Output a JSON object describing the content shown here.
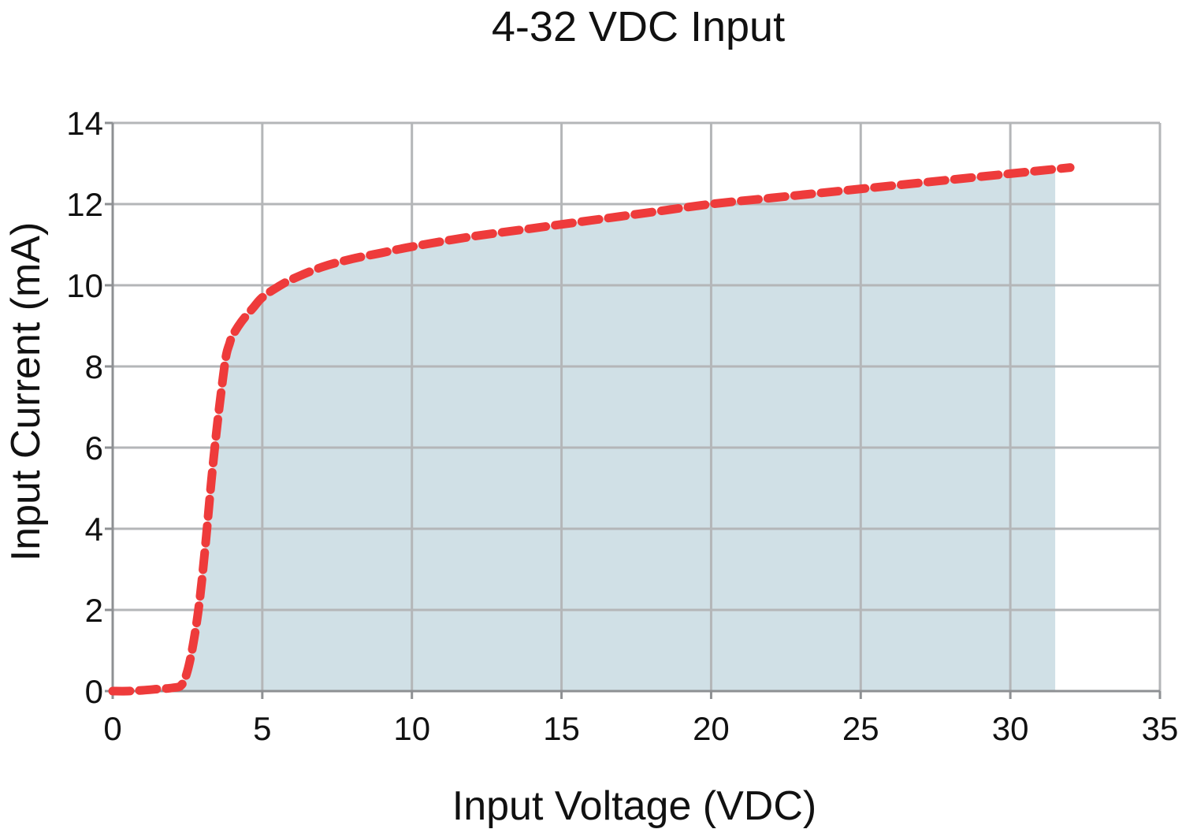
{
  "chart_data": {
    "type": "area",
    "title": "4-32 VDC Input",
    "xlabel": "Input Voltage (VDC)",
    "ylabel": "Input Current (mA)",
    "xlim": [
      0,
      35
    ],
    "ylim": [
      0,
      14
    ],
    "xticks": [
      "0",
      "5",
      "10",
      "15",
      "20",
      "25",
      "30",
      "35"
    ],
    "yticks": [
      "0",
      "2",
      "4",
      "6",
      "8",
      "10",
      "12",
      "14"
    ],
    "grid": true,
    "series": [
      {
        "style": "dashed line",
        "color": "#ee3b3b",
        "x": [
          0,
          0.5,
          1,
          1.5,
          2,
          2.3,
          2.5,
          2.7,
          2.9,
          3.1,
          3.3,
          3.5,
          3.7,
          3.8,
          3.9,
          4,
          4.3,
          4.7,
          5,
          5.5,
          6,
          7,
          8,
          9,
          10,
          12,
          14,
          16,
          18,
          20,
          22,
          24,
          26,
          28,
          30,
          32
        ],
        "y": [
          0,
          0,
          0.02,
          0.05,
          0.08,
          0.15,
          0.5,
          1.2,
          2.2,
          3.6,
          5.2,
          6.6,
          7.8,
          8.3,
          8.55,
          8.75,
          9.1,
          9.45,
          9.7,
          9.95,
          10.15,
          10.45,
          10.65,
          10.8,
          10.95,
          11.2,
          11.4,
          11.6,
          11.8,
          12.0,
          12.15,
          12.3,
          12.45,
          12.6,
          12.75,
          12.9
        ]
      }
    ],
    "fill_region": {
      "color": "#d0e0e6",
      "x_end": 31.5
    }
  }
}
